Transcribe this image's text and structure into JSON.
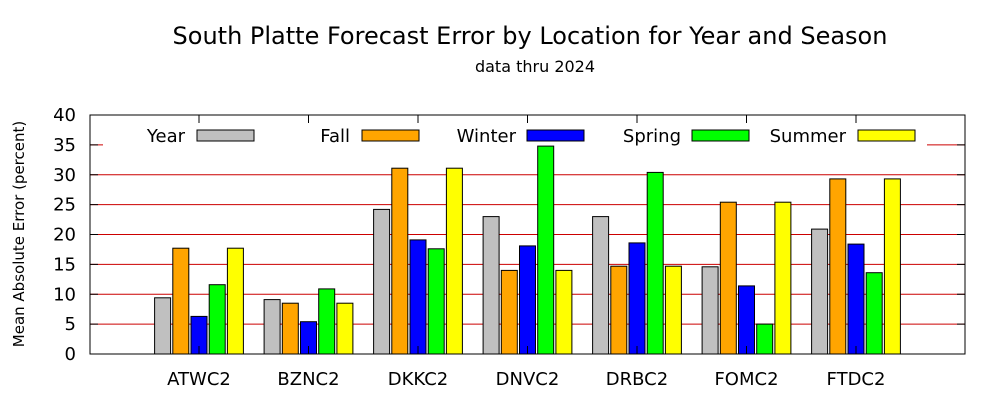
{
  "chart_data": {
    "type": "bar",
    "title": "South Platte Forecast Error by Location for Year and Season",
    "subtitle": "data thru 2024",
    "xlabel": "",
    "ylabel": "Mean Absolute Error (percent)",
    "ylim": [
      0,
      40
    ],
    "yticks": [
      "0",
      "5",
      "10",
      "15",
      "20",
      "25",
      "30",
      "35",
      "40"
    ],
    "grid": true,
    "grid_color": "#cc0000",
    "legend_position": "top",
    "categories": [
      "ATWC2",
      "BZNC2",
      "DKKC2",
      "DNVC2",
      "DRBC2",
      "FOMC2",
      "FTDC2"
    ],
    "series": [
      {
        "name": "Year",
        "color": "#c0c0c0",
        "values": [
          9.4,
          9.1,
          24.2,
          23.0,
          23.0,
          14.6,
          20.9
        ]
      },
      {
        "name": "Fall",
        "color": "#ffa500",
        "values": [
          17.7,
          8.5,
          31.1,
          14.0,
          14.7,
          25.4,
          29.3
        ]
      },
      {
        "name": "Winter",
        "color": "#0000ff",
        "values": [
          6.3,
          5.4,
          19.1,
          18.1,
          18.6,
          11.4,
          18.4
        ]
      },
      {
        "name": "Spring",
        "color": "#00ff00",
        "values": [
          11.6,
          10.9,
          17.6,
          34.8,
          30.4,
          5.0,
          13.6
        ]
      },
      {
        "name": "Summer",
        "color": "#ffff00",
        "values": [
          17.7,
          8.5,
          31.1,
          14.0,
          14.7,
          25.4,
          29.3
        ]
      }
    ]
  }
}
